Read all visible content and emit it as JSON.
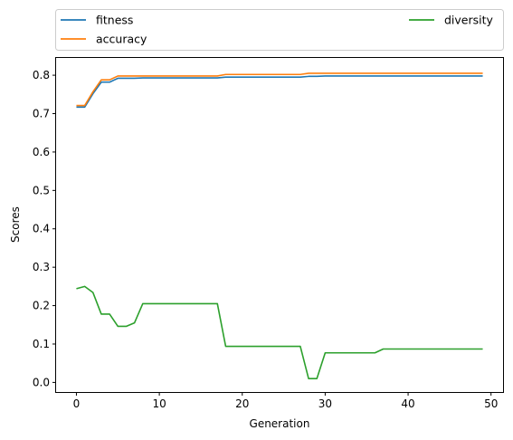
{
  "chart_data": {
    "type": "line",
    "title": "",
    "xlabel": "Generation",
    "ylabel": "Scores",
    "xlim": [
      -2.45,
      51.45
    ],
    "ylim": [
      -0.025,
      0.845
    ],
    "xticks": [
      0,
      10,
      20,
      30,
      40,
      50
    ],
    "yticks": [
      0.0,
      0.1,
      0.2,
      0.3,
      0.4,
      0.5,
      0.6,
      0.7,
      0.8
    ],
    "xtick_labels": [
      "0",
      "10",
      "20",
      "30",
      "40",
      "50"
    ],
    "ytick_labels": [
      "0.0",
      "0.1",
      "0.2",
      "0.3",
      "0.4",
      "0.5",
      "0.6",
      "0.7",
      "0.8"
    ],
    "grid": false,
    "legend_placement": "above plot, expanded across two columns",
    "x": [
      0,
      1,
      2,
      3,
      4,
      5,
      6,
      7,
      8,
      9,
      10,
      11,
      12,
      13,
      14,
      15,
      16,
      17,
      18,
      19,
      20,
      21,
      22,
      23,
      24,
      25,
      26,
      27,
      28,
      29,
      30,
      31,
      32,
      33,
      34,
      35,
      36,
      37,
      38,
      39,
      40,
      41,
      42,
      43,
      44,
      45,
      46,
      47,
      48,
      49
    ],
    "series": [
      {
        "name": "fitness",
        "color": "#1f77b4",
        "values": [
          0.717,
          0.717,
          0.752,
          0.782,
          0.782,
          0.792,
          0.792,
          0.792,
          0.793,
          0.793,
          0.793,
          0.793,
          0.793,
          0.793,
          0.793,
          0.793,
          0.793,
          0.793,
          0.795,
          0.795,
          0.795,
          0.795,
          0.795,
          0.795,
          0.795,
          0.795,
          0.795,
          0.795,
          0.797,
          0.797,
          0.798,
          0.798,
          0.798,
          0.798,
          0.798,
          0.798,
          0.798,
          0.798,
          0.798,
          0.798,
          0.798,
          0.798,
          0.798,
          0.798,
          0.798,
          0.798,
          0.798,
          0.798,
          0.798,
          0.798
        ]
      },
      {
        "name": "accuracy",
        "color": "#ff7f0e",
        "values": [
          0.721,
          0.721,
          0.757,
          0.788,
          0.788,
          0.798,
          0.798,
          0.798,
          0.798,
          0.798,
          0.798,
          0.798,
          0.798,
          0.798,
          0.798,
          0.798,
          0.798,
          0.798,
          0.802,
          0.802,
          0.802,
          0.802,
          0.802,
          0.802,
          0.802,
          0.802,
          0.802,
          0.802,
          0.805,
          0.805,
          0.805,
          0.805,
          0.805,
          0.805,
          0.805,
          0.805,
          0.805,
          0.805,
          0.805,
          0.805,
          0.805,
          0.805,
          0.805,
          0.805,
          0.805,
          0.805,
          0.805,
          0.805,
          0.805,
          0.805
        ]
      },
      {
        "name": "diversity",
        "color": "#2ca02c",
        "values": [
          0.244,
          0.25,
          0.234,
          0.178,
          0.178,
          0.146,
          0.146,
          0.155,
          0.205,
          0.205,
          0.205,
          0.205,
          0.205,
          0.205,
          0.205,
          0.205,
          0.205,
          0.205,
          0.094,
          0.094,
          0.094,
          0.094,
          0.094,
          0.094,
          0.094,
          0.094,
          0.094,
          0.094,
          0.01,
          0.01,
          0.077,
          0.077,
          0.077,
          0.077,
          0.077,
          0.077,
          0.077,
          0.087,
          0.087,
          0.087,
          0.087,
          0.087,
          0.087,
          0.087,
          0.087,
          0.087,
          0.087,
          0.087,
          0.087,
          0.087
        ]
      }
    ]
  }
}
